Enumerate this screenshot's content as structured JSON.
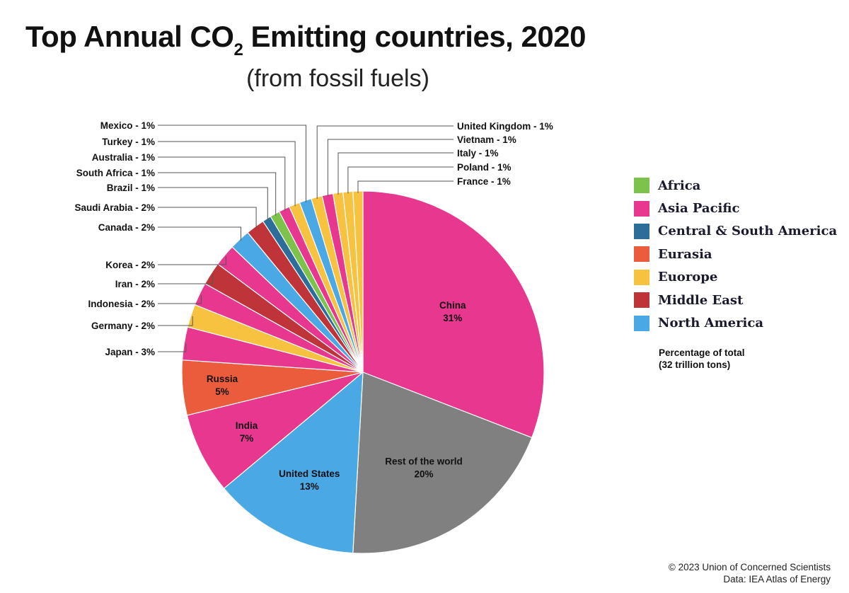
{
  "title": {
    "main": "Top Annual CO",
    "subscript": "2",
    "rest": " Emitting countries, 2020",
    "subtitle": "(from fossil fuels)"
  },
  "legend": {
    "note_line1": "Percentage of total",
    "note_line2": "(32 trillion tons)",
    "items": [
      {
        "label": "Africa",
        "color": "#7dc24b"
      },
      {
        "label": "Asia Pacific",
        "color": "#e8378f"
      },
      {
        "label": "Central & South America",
        "color": "#2c6e99"
      },
      {
        "label": "Eurasia",
        "color": "#ea5c3c"
      },
      {
        "label": "Euorope",
        "color": "#f7c23f"
      },
      {
        "label": "Middle East",
        "color": "#bf3439"
      },
      {
        "label": "North America",
        "color": "#4aa8e5"
      }
    ]
  },
  "credit": {
    "line1": "© 2023 Union of Concerned Scientists",
    "line2": "Data: IEA Atlas of Energy"
  },
  "chart_data": {
    "type": "pie",
    "unit": "percent",
    "slices": [
      {
        "label": "China",
        "value_label": "31%",
        "value": 31.5,
        "region": "Asia Pacific",
        "color": "#e8378f",
        "style": "inside"
      },
      {
        "label": "Rest of the world",
        "value_label": "20%",
        "value": 20.4,
        "region": "",
        "color": "#808080",
        "style": "inside"
      },
      {
        "label": "United States",
        "value_label": "13%",
        "value": 13.3,
        "region": "North America",
        "color": "#4aa8e5",
        "style": "inside"
      },
      {
        "label": "India",
        "value_label": "7%",
        "value": 7.4,
        "region": "Asia Pacific",
        "color": "#e8378f",
        "style": "inside"
      },
      {
        "label": "Russia",
        "value_label": "5%",
        "value": 5.0,
        "region": "Eurasia",
        "color": "#ea5c3c",
        "style": "inside"
      },
      {
        "label": "Japan - 3%",
        "value": 3.0,
        "region": "Asia Pacific",
        "color": "#e8378f",
        "style": "left"
      },
      {
        "label": "Germany - 2%",
        "value": 2.1,
        "region": "Euorope",
        "color": "#f7c23f",
        "style": "left"
      },
      {
        "label": "Indonesia - 2%",
        "value": 2.1,
        "region": "Asia Pacific",
        "color": "#e8378f",
        "style": "left"
      },
      {
        "label": "Iran - 2%",
        "value": 2.1,
        "region": "Middle East",
        "color": "#bf3439",
        "style": "left"
      },
      {
        "label": "Korea - 2%",
        "value": 2.0,
        "region": "Asia Pacific",
        "color": "#e8378f",
        "style": "left"
      },
      {
        "label": "Canada - 2%",
        "value": 1.9,
        "region": "North America",
        "color": "#4aa8e5",
        "style": "left"
      },
      {
        "label": "Saudi Arabia - 2%",
        "value": 1.7,
        "region": "Middle East",
        "color": "#bf3439",
        "style": "left"
      },
      {
        "label": "Brazil - 1%",
        "value": 0.8,
        "region": "Central & South America",
        "color": "#2c6e99",
        "style": "left"
      },
      {
        "label": "South Africa - 1%",
        "value": 0.9,
        "region": "Africa",
        "color": "#7dc24b",
        "style": "left"
      },
      {
        "label": "Australia - 1%",
        "value": 1.0,
        "region": "Asia Pacific",
        "color": "#e8378f",
        "style": "left"
      },
      {
        "label": "Turkey - 1%",
        "value": 1.0,
        "region": "Euorope",
        "color": "#f7c23f",
        "style": "left"
      },
      {
        "label": "Mexico - 1%",
        "value": 1.1,
        "region": "North America",
        "color": "#4aa8e5",
        "style": "left"
      },
      {
        "label": "United Kingdom - 1%",
        "value": 1.0,
        "region": "Euorope",
        "color": "#f7c23f",
        "style": "right"
      },
      {
        "label": "Vietnam - 1%",
        "value": 1.0,
        "region": "Asia Pacific",
        "color": "#e8378f",
        "style": "right"
      },
      {
        "label": "Italy - 1%",
        "value": 0.9,
        "region": "Euorope",
        "color": "#f7c23f",
        "style": "right"
      },
      {
        "label": "Poland - 1%",
        "value": 0.9,
        "region": "Euorope",
        "color": "#f7c23f",
        "style": "right"
      },
      {
        "label": "France - 1%",
        "value": 0.9,
        "region": "Euorope",
        "color": "#f7c23f",
        "style": "right"
      }
    ]
  }
}
